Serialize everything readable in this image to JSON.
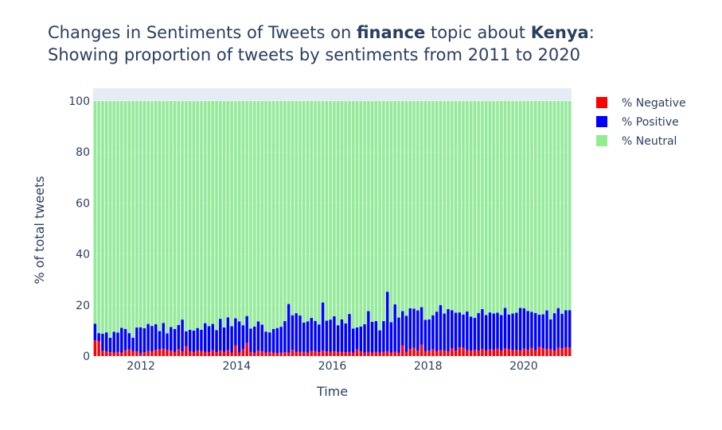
{
  "chart_data": {
    "type": "bar",
    "stacked": true,
    "title": {
      "line1_parts": [
        "Changes in Sentiments of Tweets on ",
        "finance",
        " topic about ",
        "Kenya",
        ":"
      ],
      "bold_parts": [
        1,
        3
      ],
      "line2": "Showing proportion of tweets by sentiments from 2011 to 2020"
    },
    "xlabel": "Time",
    "ylabel": "% of total tweets",
    "ylim": [
      0,
      105
    ],
    "yticks": [
      0,
      20,
      40,
      60,
      80,
      100
    ],
    "xticks": [
      2012,
      2014,
      2016,
      2018,
      2020
    ],
    "x_range": [
      2011.0,
      2021.0
    ],
    "x_start_year": 2011,
    "periods_per_year": 12,
    "plot_background": "#e5ecf6",
    "legend_position": "top-right",
    "series": [
      {
        "name": "% Negative",
        "color": "#ff0000",
        "values": [
          6.2,
          5.8,
          2.1,
          1.8,
          1.5,
          1.4,
          1.6,
          1.3,
          2.3,
          2.6,
          1.9,
          1.8,
          1.1,
          1.5,
          2.0,
          1.8,
          2.4,
          2.6,
          2.9,
          2.4,
          2.1,
          1.7,
          2.6,
          1.8,
          3.8,
          1.9,
          1.6,
          2.1,
          2.0,
          1.7,
          1.6,
          2.3,
          1.5,
          2.1,
          1.7,
          2.3,
          1.4,
          4.2,
          1.4,
          2.7,
          5.2,
          1.6,
          1.3,
          2.1,
          1.8,
          1.3,
          1.6,
          1.4,
          1.2,
          1.3,
          1.5,
          1.3,
          2.4,
          1.7,
          1.6,
          1.6,
          1.3,
          2.0,
          1.9,
          1.5,
          2.1,
          1.8,
          1.7,
          1.8,
          1.6,
          1.6,
          1.5,
          1.7,
          1.3,
          2.6,
          1.8,
          1.3,
          1.6,
          1.3,
          1.7,
          1.4,
          1.6,
          1.9,
          1.3,
          1.7,
          1.4,
          4.2,
          1.7,
          2.8,
          3.2,
          2.1,
          4.5,
          1.9,
          2.1,
          2.6,
          1.9,
          2.3,
          2.2,
          1.8,
          3.1,
          2.2,
          3.4,
          3.2,
          2.3,
          2.1,
          2.4,
          2.2,
          2.8,
          2.2,
          2.6,
          2.5,
          2.9,
          2.1,
          3.0,
          2.8,
          2.3,
          2.5,
          2.1,
          2.9,
          2.4,
          3.2,
          2.3,
          3.6,
          3.1,
          2.7,
          2.8,
          2.1,
          3.2,
          3.0,
          3.4,
          3.3
        ]
      },
      {
        "name": "% Positive",
        "color": "#0000ff",
        "values": [
          6.5,
          3.2,
          6.7,
          7.5,
          5.7,
          8.1,
          7.6,
          9.8,
          8.3,
          6.4,
          5.3,
          9.4,
          10.2,
          9.4,
          10.6,
          10.0,
          10.1,
          7.2,
          10.1,
          6.5,
          9.3,
          8.9,
          9.6,
          12.5,
          5.9,
          8.4,
          8.4,
          8.9,
          8.3,
          11.2,
          10.1,
          10.3,
          8.7,
          12.5,
          9.5,
          12.9,
          10.3,
          10.6,
          12.2,
          9.4,
          10.5,
          9.2,
          10.3,
          11.5,
          10.5,
          8.3,
          7.7,
          9.2,
          9.8,
          10.2,
          12.2,
          19.1,
          13.6,
          15.1,
          14.3,
          11.5,
          12.3,
          13.0,
          11.9,
          10.9,
          18.9,
          12.1,
          12.6,
          13.8,
          10.5,
          12.8,
          11.3,
          14.8,
          9.5,
          8.6,
          9.8,
          11.2,
          16.0,
          12.1,
          12.0,
          8.7,
          12.1,
          23.3,
          12.0,
          18.6,
          13.7,
          13.4,
          14.1,
          15.9,
          15.4,
          15.8,
          14.7,
          12.3,
          12.3,
          13.4,
          15.5,
          17.7,
          14.5,
          16.6,
          14.9,
          14.8,
          13.7,
          13.1,
          15.2,
          13.4,
          12.6,
          14.7,
          15.6,
          13.9,
          14.5,
          14.2,
          14.1,
          14.0,
          15.9,
          13.5,
          14.4,
          14.5,
          16.8,
          15.8,
          15.3,
          14.1,
          14.6,
          12.6,
          13.3,
          15.2,
          11.6,
          14.7,
          15.6,
          13.6,
          14.6,
          14.7
        ]
      },
      {
        "name": "% Neutral",
        "color": "#90ee90",
        "values": [
          87.3,
          91.0,
          91.2,
          90.7,
          92.8,
          90.5,
          90.8,
          88.9,
          89.4,
          91.0,
          92.8,
          88.8,
          88.7,
          89.1,
          87.4,
          88.2,
          87.5,
          90.2,
          87.0,
          91.1,
          88.6,
          89.4,
          87.8,
          85.7,
          90.3,
          89.7,
          90.0,
          89.0,
          89.7,
          87.1,
          88.3,
          87.4,
          89.8,
          85.4,
          88.8,
          84.8,
          88.3,
          85.2,
          86.4,
          87.9,
          84.3,
          89.2,
          88.4,
          86.4,
          87.7,
          90.4,
          90.7,
          89.4,
          89.0,
          88.5,
          86.3,
          79.6,
          84.0,
          83.2,
          84.1,
          86.9,
          86.4,
          85.0,
          86.2,
          87.6,
          79.0,
          86.1,
          85.7,
          84.4,
          87.9,
          85.6,
          87.2,
          83.5,
          89.2,
          88.8,
          88.4,
          87.5,
          82.4,
          86.6,
          86.3,
          89.9,
          86.3,
          74.8,
          86.7,
          79.7,
          84.9,
          82.4,
          84.2,
          81.3,
          81.4,
          82.1,
          80.8,
          85.8,
          85.6,
          84.0,
          82.6,
          80.0,
          83.3,
          81.6,
          82.0,
          83.0,
          82.9,
          83.7,
          82.5,
          84.5,
          85.0,
          83.1,
          81.6,
          83.9,
          82.9,
          83.3,
          83.0,
          83.9,
          81.1,
          83.7,
          83.3,
          83.0,
          81.1,
          81.3,
          82.3,
          82.7,
          83.1,
          83.8,
          83.6,
          82.1,
          85.6,
          83.2,
          81.2,
          83.4,
          82.0,
          82.0
        ]
      }
    ]
  }
}
